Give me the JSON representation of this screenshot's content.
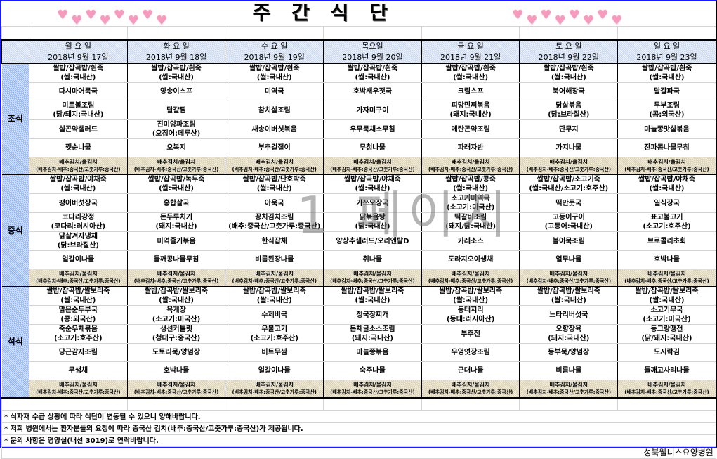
{
  "title": "주 간 식 단",
  "watermark": "1 페이지",
  "colors": {
    "heart": "#f59bbd",
    "frame": "#1a1aff",
    "kimchi_bg": "#e5dcc2",
    "header_bg": "#dce6f6",
    "label_bg": "#b0c9fa"
  },
  "days": [
    {
      "name": "월 요 일",
      "date": "2018년 9월 17일"
    },
    {
      "name": "화 요 일",
      "date": "2018년 9월 18일"
    },
    {
      "name": "수 요 일",
      "date": "2018년 9월 19일"
    },
    {
      "name": "목요일",
      "date": "2018년 9월 20일"
    },
    {
      "name": "금 요 일",
      "date": "2018년 9월 21일"
    },
    {
      "name": "토 요 일",
      "date": "2018년 9월 22일"
    },
    {
      "name": "일 요 일",
      "date": "2018년 9월 23일"
    }
  ],
  "kimchi": {
    "name": "배추김치/울김치",
    "origin": "(배추김치-배추:중국산/고춧가루:중국산)"
  },
  "meals": [
    {
      "label": "조식",
      "rows": [
        [
          "쌀밥/잡곡밥/흰죽\n(쌀:국내산)",
          "쌀밥/잡곡밥/흰죽\n(쌀:국내산)",
          "쌀밥/잡곡밥/흰죽\n(쌀:국내산)",
          "쌀밥/잡곡밥/흰죽\n(쌀:국내산)",
          "쌀밥/잡곡밥/흰죽\n(쌀:국내산)",
          "쌀밥/잡곡밥/흰죽\n(쌀:국내산)",
          "쌀밥/잡곡밥/흰죽\n(쌀:국내산)"
        ],
        [
          "다시마어묵국",
          "양송이스프",
          "미역국",
          "호박새우젓국",
          "크림스프",
          "북어해장국",
          "달걀파국"
        ],
        [
          "미트볼조림\n(닭/돼지:국내산)",
          "달걀찜",
          "참치살조림",
          "가자미구이",
          "피망민찌볶음\n(돼지:국내산)",
          "닭살볶음\n(닭:브라질산)",
          "두부조림\n(콩:외국산)"
        ],
        [
          "실곤약샐러드",
          "진미양파조림\n(오징어:페루산)",
          "새송이버섯볶음",
          "우무묵채소무침",
          "메란곤약조림",
          "단무지",
          "마늘쫑맛살볶음"
        ],
        [
          "깻순나물",
          "오복지",
          "부추겉절이",
          "무청나물",
          "파래자반",
          "가지나물",
          "잔파콩나물무침"
        ]
      ]
    },
    {
      "label": "중식",
      "rows": [
        [
          "쌀밥/잡곡밥/야채죽\n(쌀:국내산)",
          "쌀밥/잡곡밥/녹두죽\n(쌀:국내산)",
          "쌀밥/잡곡밥/단호박죽\n(쌀:국내산)",
          "쌀밥/잡곡밥/야채죽\n(쌀:국내산)",
          "쌀밥/잡곡밥/콩죽\n(쌀:국내산)",
          "쌀밥/잡곡밥/소고기죽\n(쌀:국내산/소고기:호주산)",
          "쌀밥/잡곡밥/야채죽\n(쌀:국내산)"
        ],
        [
          "팽이버섯장국",
          "홍합살국",
          "아욱국",
          "가쓰오장국",
          "소고기미역국\n(소고기:미국산)",
          "떡만둣국",
          "일식장국"
        ],
        [
          "코다리강정\n(코다리:러시아산)",
          "돈두루치기\n(돼지:국내산)",
          "꽁치김치조림\n(배추:중국산/고춧가루:중국산)",
          "닭볶음탕\n(닭:국내산)",
          "떡갈비조림\n(돼지/닭:국내산)",
          "고등어구이\n(고등어:국내산)",
          "표고불고기\n(소고기:호주산)"
        ],
        [
          "닭살겨자냉채\n(닭:브라질산)",
          "미역줄기볶음",
          "한식잡채",
          "양상추샐러드/오리엔탈D",
          "카레소스",
          "볼어묵조림",
          "브로콜리초회"
        ],
        [
          "얼갈이나물",
          "들깨콩나물무침",
          "비름된장나물",
          "취나물",
          "도라지오이생채",
          "열무나물",
          "호박나물"
        ]
      ]
    },
    {
      "label": "석식",
      "rows": [
        [
          "쌀밥/잡곡밥/쌀보리죽\n(쌀:국내산)",
          "쌀밥/잡곡밥/쌀보리죽\n(쌀:국내산)",
          "쌀밥/잡곡밥/쌀보리죽\n(쌀:국내산)",
          "쌀밥/잡곡밥/쌀보리죽\n(쌀:국내산)",
          "쌀밥/잡곡밥/쌀보리죽\n(쌀:국내산)",
          "쌀밥/잡곡밥/쌀보리죽\n(쌀:국내산)",
          "쌀밥/잡곡밥/쌀보리죽\n(쌀:국내산)"
        ],
        [
          "맑은순두부국\n(콩:외국산)",
          "육개장\n(소고기:미국산)",
          "수제비국",
          "청국장찌개",
          "동태지리\n(동태:러시아산)",
          "느타리버섯국",
          "소고기무국\n(소고기:미국산)"
        ],
        [
          "죽순우채볶음\n(소고기:호주산)",
          "생선커틀릿\n(청대구:중국산)",
          "우불고기\n(소고기:호주산)",
          "돈채굴소스조림\n(돼지:국내산)",
          "부추전",
          "오향장육\n(돼지:국내산)",
          "동그랑땡전\n(닭/돼지:국내산)"
        ],
        [
          "당근감자조림",
          "도토리묵/양념장",
          "비트무쌈",
          "마늘쫑볶음",
          "우엉엿장조림",
          "동부묵/양념장",
          "도시락김"
        ],
        [
          "무생채",
          "호박나물",
          "얼갈이나물",
          "숙주나물",
          "근대나물",
          "비름나물",
          "들깨고사리나물"
        ]
      ]
    }
  ],
  "notes": [
    "* 식자재 수급 상황에 따라 식단이 변동될 수 있으니 양해바랍니다.",
    "* 저희 병원에서는 환자분들의 요청에 따라 중국산 김치(배추:중국산/고춧가루:중국산)가 제공됩니다.",
    "* 문의 사항은 영양실(내선 3019)로 연락바랍니다."
  ],
  "hospital": "성북웰니스요양병원"
}
